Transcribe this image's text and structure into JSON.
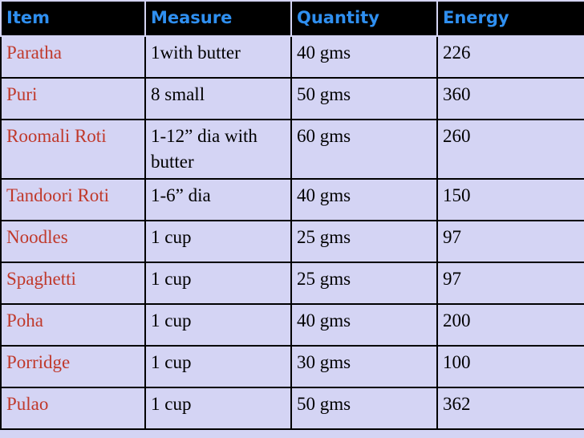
{
  "table": {
    "columns": [
      "Item",
      "Measure",
      "Quantity",
      "Energy"
    ],
    "rows": [
      {
        "item": "Paratha",
        "measure": "1with butter",
        "quantity": "40 gms",
        "energy": "226"
      },
      {
        "item": "Puri",
        "measure": "8 small",
        "quantity": "50 gms",
        "energy": "360"
      },
      {
        "item": "Roomali Roti",
        "measure": "1-12” dia with butter",
        "quantity": "60 gms",
        "energy": "260"
      },
      {
        "item": "Tandoori Roti",
        "measure": "1-6” dia",
        "quantity": "40 gms",
        "energy": "150"
      },
      {
        "item": "Noodles",
        "measure": "1 cup",
        "quantity": "25 gms",
        "energy": "97"
      },
      {
        "item": "Spaghetti",
        "measure": "1 cup",
        "quantity": "25 gms",
        "energy": "97"
      },
      {
        "item": "Poha",
        "measure": "1 cup",
        "quantity": "40 gms",
        "energy": "200"
      },
      {
        "item": "Porridge",
        "measure": "1 cup",
        "quantity": "30 gms",
        "energy": "100"
      },
      {
        "item": "Pulao",
        "measure": "1 cup",
        "quantity": "50 gms",
        "energy": "362"
      }
    ]
  },
  "colors": {
    "background": "#d4d4f4",
    "header_bg": "#000000",
    "header_text": "#2f8ff0",
    "item_text": "#c0392b",
    "cell_text": "#000000"
  }
}
